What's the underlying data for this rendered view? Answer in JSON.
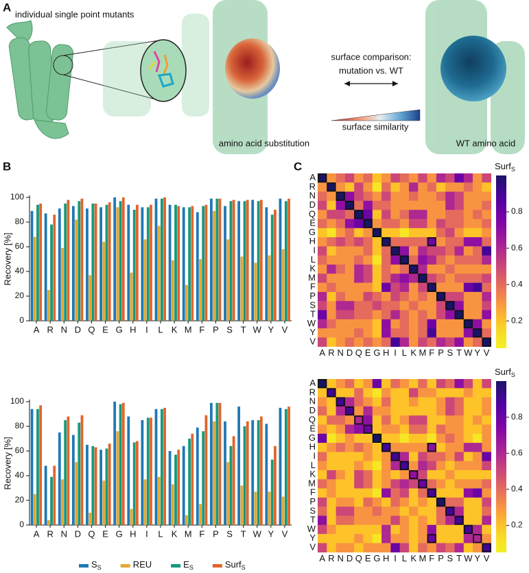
{
  "panels": {
    "a": "A",
    "b": "B",
    "c": "C"
  },
  "illustration": {
    "mutants": "individual single point mutants",
    "comparison_1": "surface comparison:",
    "comparison_2": "mutation vs. WT",
    "similarity": "surface similarity",
    "substitution": "amino acid substitution",
    "wild_type": "WT amino acid"
  },
  "chart_data": [
    {
      "type": "bar",
      "ylabel": "Recovery [%]",
      "categories": [
        "A",
        "R",
        "N",
        "D",
        "Q",
        "E",
        "G",
        "H",
        "I",
        "L",
        "K",
        "M",
        "F",
        "P",
        "S",
        "T",
        "W",
        "Y",
        "V"
      ],
      "ylim": [
        0,
        100
      ],
      "yticks": [
        0,
        20,
        40,
        60,
        80,
        100
      ],
      "series": [
        {
          "color": "#1f78b4",
          "values": [
            89,
            87,
            91,
            93,
            91,
            92,
            100,
            94,
            92,
            99,
            94,
            92,
            88,
            99,
            93,
            97,
            98,
            92,
            99
          ]
        },
        {
          "color": "#e3a733",
          "values": [
            68,
            25,
            59,
            82,
            37,
            64,
            92,
            39,
            66,
            77,
            49,
            29,
            50,
            89,
            66,
            52,
            47,
            53,
            58
          ]
        },
        {
          "color": "#169a7c",
          "values": [
            94,
            78,
            95,
            97,
            95,
            94,
            97,
            90,
            92,
            99,
            94,
            92,
            93,
            99,
            97,
            97,
            97,
            86,
            97
          ]
        },
        {
          "color": "#e1652c",
          "values": [
            95,
            86,
            98,
            99,
            95,
            96,
            100,
            94,
            94,
            100,
            93,
            93,
            94,
            99,
            98,
            98,
            98,
            90,
            99
          ]
        }
      ]
    },
    {
      "type": "bar",
      "ylabel": "Recovery [%]",
      "categories": [
        "A",
        "R",
        "N",
        "D",
        "Q",
        "E",
        "G",
        "H",
        "I",
        "L",
        "K",
        "M",
        "F",
        "P",
        "S",
        "T",
        "W",
        "Y",
        "V"
      ],
      "ylim": [
        0,
        100
      ],
      "yticks": [
        0,
        20,
        40,
        60,
        80,
        100
      ],
      "legend": "below",
      "series": [
        {
          "name": "S",
          "sub": "S",
          "color": "#1f78b4",
          "values": [
            94,
            48,
            75,
            73,
            65,
            61,
            100,
            88,
            85,
            94,
            60,
            64,
            79,
            99,
            84,
            96,
            85,
            82,
            95
          ]
        },
        {
          "name": "REU",
          "color": "#e3a733",
          "values": [
            25,
            4,
            37,
            51,
            10,
            36,
            76,
            13,
            37,
            39,
            33,
            8,
            17,
            84,
            51,
            32,
            27,
            27,
            23
          ]
        },
        {
          "name": "E",
          "sub": "S",
          "color": "#169a7c",
          "values": [
            94,
            39,
            85,
            83,
            64,
            62,
            98,
            67,
            87,
            94,
            57,
            70,
            76,
            99,
            64,
            80,
            85,
            53,
            94
          ]
        },
        {
          "name": "Surf",
          "sub": "S",
          "color": "#e1652c",
          "values": [
            97,
            48,
            88,
            89,
            63,
            66,
            99,
            68,
            87,
            95,
            61,
            74,
            89,
            99,
            72,
            84,
            88,
            64,
            96
          ]
        }
      ]
    },
    {
      "type": "heatmap",
      "colormap": "plasma_r",
      "colorbar_label": "Surf",
      "colorbar_sub": "S",
      "categories": [
        "A",
        "R",
        "N",
        "D",
        "Q",
        "E",
        "G",
        "H",
        "I",
        "L",
        "K",
        "M",
        "F",
        "P",
        "S",
        "T",
        "W",
        "Y",
        "V"
      ],
      "clim": [
        0.05,
        1.0
      ],
      "yticks": [
        0.2,
        0.4,
        0.6,
        0.8
      ],
      "highlight_diagonal": true,
      "highlight": [
        [
          7,
          12
        ]
      ],
      "z": [
        [
          1.0,
          0.3,
          0.4,
          0.5,
          0.3,
          0.4,
          0.2,
          0.3,
          0.5,
          0.4,
          0.3,
          0.5,
          0.3,
          0.6,
          0.5,
          0.8,
          0.6,
          0.3,
          0.5
        ],
        [
          0.3,
          1.0,
          0.3,
          0.2,
          0.5,
          0.3,
          0.1,
          0.4,
          0.2,
          0.3,
          0.6,
          0.3,
          0.4,
          0.2,
          0.3,
          0.3,
          0.4,
          0.3,
          0.2
        ],
        [
          0.4,
          0.3,
          1.0,
          0.7,
          0.5,
          0.4,
          0.3,
          0.5,
          0.3,
          0.3,
          0.4,
          0.3,
          0.3,
          0.4,
          0.6,
          0.5,
          0.3,
          0.3,
          0.3
        ],
        [
          0.5,
          0.2,
          0.7,
          1.0,
          0.4,
          0.7,
          0.4,
          0.4,
          0.3,
          0.3,
          0.3,
          0.3,
          0.3,
          0.3,
          0.6,
          0.5,
          0.3,
          0.3,
          0.4
        ],
        [
          0.3,
          0.5,
          0.5,
          0.4,
          1.0,
          0.8,
          0.2,
          0.5,
          0.3,
          0.4,
          0.6,
          0.6,
          0.3,
          0.3,
          0.4,
          0.4,
          0.3,
          0.4,
          0.3
        ],
        [
          0.4,
          0.3,
          0.4,
          0.7,
          0.8,
          1.0,
          0.3,
          0.4,
          0.4,
          0.3,
          0.5,
          0.5,
          0.3,
          0.5,
          0.4,
          0.4,
          0.3,
          0.3,
          0.4
        ],
        [
          0.2,
          0.1,
          0.3,
          0.4,
          0.2,
          0.3,
          1.0,
          0.2,
          0.2,
          0.1,
          0.2,
          0.2,
          0.2,
          0.4,
          0.5,
          0.3,
          0.2,
          0.2,
          0.3
        ],
        [
          0.3,
          0.4,
          0.5,
          0.4,
          0.5,
          0.4,
          0.2,
          1.0,
          0.4,
          0.4,
          0.4,
          0.4,
          0.8,
          0.3,
          0.4,
          0.4,
          0.7,
          0.7,
          0.4
        ],
        [
          0.5,
          0.2,
          0.3,
          0.3,
          0.3,
          0.4,
          0.2,
          0.4,
          1.0,
          0.7,
          0.3,
          0.6,
          0.5,
          0.5,
          0.4,
          0.6,
          0.3,
          0.4,
          0.9
        ],
        [
          0.4,
          0.3,
          0.3,
          0.3,
          0.4,
          0.3,
          0.1,
          0.4,
          0.7,
          1.0,
          0.4,
          0.7,
          0.6,
          0.4,
          0.3,
          0.4,
          0.4,
          0.4,
          0.6
        ],
        [
          0.3,
          0.6,
          0.4,
          0.3,
          0.6,
          0.5,
          0.2,
          0.4,
          0.3,
          0.4,
          1.0,
          0.6,
          0.3,
          0.3,
          0.4,
          0.3,
          0.3,
          0.3,
          0.3
        ],
        [
          0.5,
          0.3,
          0.3,
          0.3,
          0.6,
          0.5,
          0.2,
          0.4,
          0.6,
          0.7,
          0.6,
          1.0,
          0.5,
          0.4,
          0.3,
          0.4,
          0.4,
          0.4,
          0.5
        ],
        [
          0.3,
          0.4,
          0.3,
          0.3,
          0.3,
          0.3,
          0.2,
          0.8,
          0.5,
          0.6,
          0.3,
          0.5,
          1.0,
          0.3,
          0.3,
          0.3,
          0.8,
          0.9,
          0.4
        ],
        [
          0.6,
          0.2,
          0.4,
          0.3,
          0.3,
          0.5,
          0.4,
          0.3,
          0.5,
          0.4,
          0.3,
          0.4,
          0.3,
          1.0,
          0.5,
          0.5,
          0.3,
          0.3,
          0.6
        ],
        [
          0.5,
          0.3,
          0.6,
          0.6,
          0.4,
          0.4,
          0.5,
          0.4,
          0.4,
          0.3,
          0.4,
          0.3,
          0.3,
          0.5,
          1.0,
          0.7,
          0.3,
          0.3,
          0.5
        ],
        [
          0.8,
          0.3,
          0.5,
          0.5,
          0.4,
          0.4,
          0.3,
          0.4,
          0.6,
          0.4,
          0.3,
          0.4,
          0.3,
          0.5,
          0.7,
          1.0,
          0.3,
          0.3,
          0.7
        ],
        [
          0.6,
          0.4,
          0.3,
          0.3,
          0.3,
          0.3,
          0.2,
          0.7,
          0.3,
          0.4,
          0.3,
          0.4,
          0.8,
          0.3,
          0.3,
          0.3,
          1.0,
          0.7,
          0.3
        ],
        [
          0.3,
          0.3,
          0.3,
          0.3,
          0.4,
          0.3,
          0.2,
          0.7,
          0.4,
          0.4,
          0.3,
          0.4,
          0.9,
          0.3,
          0.3,
          0.3,
          0.7,
          1.0,
          0.4
        ],
        [
          0.5,
          0.2,
          0.3,
          0.4,
          0.3,
          0.4,
          0.3,
          0.4,
          0.9,
          0.6,
          0.3,
          0.5,
          0.4,
          0.6,
          0.5,
          0.7,
          0.3,
          0.4,
          1.0
        ]
      ]
    },
    {
      "type": "heatmap",
      "colormap": "plasma_r",
      "colorbar_label": "Surf",
      "colorbar_sub": "S",
      "categories": [
        "A",
        "R",
        "N",
        "D",
        "Q",
        "E",
        "G",
        "H",
        "I",
        "L",
        "K",
        "M",
        "F",
        "P",
        "S",
        "T",
        "W",
        "Y",
        "V"
      ],
      "clim": [
        0.05,
        1.0
      ],
      "yticks": [
        0.2,
        0.4,
        0.6,
        0.8
      ],
      "highlight_diagonal": true,
      "highlight": [
        [
          7,
          12
        ],
        [
          17,
          12
        ]
      ],
      "z": [
        [
          1.0,
          0.2,
          0.3,
          0.4,
          0.2,
          0.3,
          0.8,
          0.2,
          0.4,
          0.3,
          0.2,
          0.4,
          0.2,
          0.5,
          0.4,
          0.7,
          0.5,
          0.2,
          0.5
        ],
        [
          0.2,
          0.9,
          0.2,
          0.2,
          0.4,
          0.2,
          0.1,
          0.3,
          0.2,
          0.2,
          0.5,
          0.3,
          0.3,
          0.2,
          0.2,
          0.2,
          0.3,
          0.2,
          0.2
        ],
        [
          0.3,
          0.2,
          0.9,
          0.6,
          0.4,
          0.3,
          0.2,
          0.4,
          0.2,
          0.2,
          0.3,
          0.2,
          0.2,
          0.3,
          0.5,
          0.4,
          0.2,
          0.2,
          0.3
        ],
        [
          0.4,
          0.2,
          0.6,
          0.9,
          0.3,
          0.6,
          0.3,
          0.3,
          0.2,
          0.2,
          0.2,
          0.2,
          0.2,
          0.3,
          0.5,
          0.4,
          0.2,
          0.2,
          0.3
        ],
        [
          0.2,
          0.4,
          0.4,
          0.3,
          0.6,
          0.7,
          0.2,
          0.4,
          0.2,
          0.3,
          0.5,
          0.5,
          0.2,
          0.2,
          0.3,
          0.3,
          0.2,
          0.3,
          0.2
        ],
        [
          0.3,
          0.2,
          0.3,
          0.6,
          0.7,
          0.8,
          0.2,
          0.3,
          0.3,
          0.2,
          0.4,
          0.4,
          0.2,
          0.4,
          0.3,
          0.3,
          0.2,
          0.2,
          0.3
        ],
        [
          0.8,
          0.1,
          0.2,
          0.3,
          0.2,
          0.2,
          1.0,
          0.2,
          0.2,
          0.1,
          0.2,
          0.2,
          0.1,
          0.3,
          0.4,
          0.3,
          0.2,
          0.1,
          0.3
        ],
        [
          0.2,
          0.3,
          0.4,
          0.3,
          0.4,
          0.3,
          0.2,
          0.9,
          0.3,
          0.3,
          0.3,
          0.3,
          0.7,
          0.2,
          0.3,
          0.3,
          0.6,
          0.6,
          0.3
        ],
        [
          0.4,
          0.2,
          0.2,
          0.2,
          0.2,
          0.3,
          0.2,
          0.3,
          0.9,
          0.6,
          0.2,
          0.5,
          0.4,
          0.4,
          0.3,
          0.5,
          0.2,
          0.3,
          0.8
        ],
        [
          0.3,
          0.2,
          0.2,
          0.2,
          0.3,
          0.2,
          0.1,
          0.3,
          0.6,
          0.9,
          0.3,
          0.6,
          0.5,
          0.3,
          0.2,
          0.3,
          0.3,
          0.3,
          0.5
        ],
        [
          0.2,
          0.5,
          0.3,
          0.2,
          0.5,
          0.4,
          0.2,
          0.3,
          0.2,
          0.3,
          0.7,
          0.5,
          0.2,
          0.2,
          0.3,
          0.2,
          0.2,
          0.2,
          0.2
        ],
        [
          0.4,
          0.3,
          0.2,
          0.2,
          0.5,
          0.4,
          0.2,
          0.3,
          0.5,
          0.6,
          0.5,
          0.8,
          0.4,
          0.3,
          0.2,
          0.3,
          0.3,
          0.3,
          0.4
        ],
        [
          0.2,
          0.3,
          0.2,
          0.2,
          0.2,
          0.2,
          0.1,
          0.7,
          0.4,
          0.5,
          0.2,
          0.4,
          0.9,
          0.2,
          0.2,
          0.2,
          0.7,
          0.8,
          0.3
        ],
        [
          0.5,
          0.2,
          0.3,
          0.3,
          0.2,
          0.4,
          0.3,
          0.2,
          0.4,
          0.3,
          0.2,
          0.3,
          0.2,
          1.0,
          0.4,
          0.4,
          0.2,
          0.2,
          0.5
        ],
        [
          0.4,
          0.2,
          0.5,
          0.5,
          0.3,
          0.3,
          0.4,
          0.3,
          0.3,
          0.2,
          0.3,
          0.2,
          0.2,
          0.4,
          0.9,
          0.6,
          0.2,
          0.2,
          0.4
        ],
        [
          0.7,
          0.2,
          0.4,
          0.4,
          0.3,
          0.3,
          0.3,
          0.3,
          0.5,
          0.3,
          0.2,
          0.3,
          0.2,
          0.4,
          0.6,
          0.9,
          0.2,
          0.2,
          0.6
        ],
        [
          0.5,
          0.3,
          0.2,
          0.2,
          0.2,
          0.2,
          0.2,
          0.6,
          0.2,
          0.3,
          0.2,
          0.3,
          0.7,
          0.2,
          0.2,
          0.2,
          0.9,
          0.6,
          0.2
        ],
        [
          0.2,
          0.2,
          0.2,
          0.2,
          0.3,
          0.2,
          0.1,
          0.6,
          0.3,
          0.3,
          0.2,
          0.3,
          0.8,
          0.2,
          0.2,
          0.2,
          0.6,
          0.6,
          0.3
        ],
        [
          0.5,
          0.2,
          0.3,
          0.3,
          0.2,
          0.3,
          0.3,
          0.3,
          0.8,
          0.5,
          0.2,
          0.4,
          0.3,
          0.5,
          0.4,
          0.6,
          0.2,
          0.3,
          0.9
        ]
      ]
    }
  ]
}
